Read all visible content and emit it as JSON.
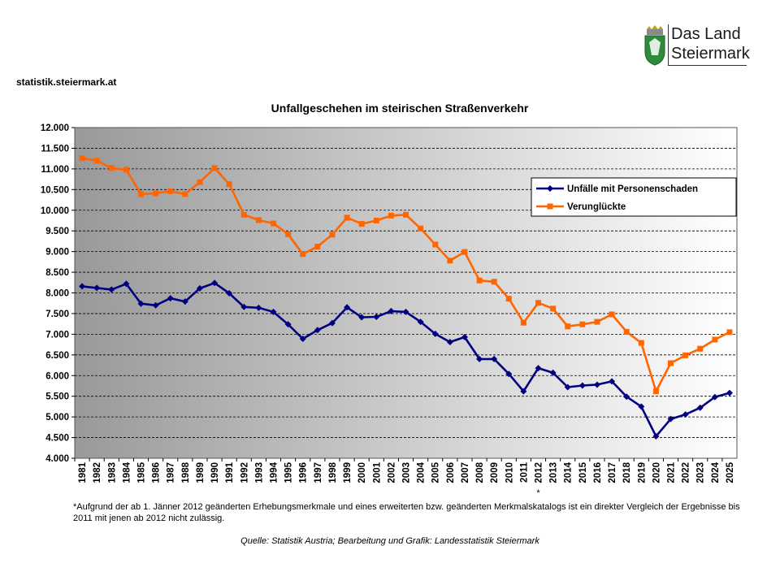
{
  "header": {
    "site": "statistik.steiermark.at",
    "logo_line1": "Das Land",
    "logo_line2": "Steiermark"
  },
  "footnote": "*Aufgrund der ab 1. Jänner 2012 geänderten Erhebungsmerkmale und eines erweiterten bzw. geänderten Merkmalskatalogs ist ein direkter Vergleich der Ergebnisse bis 2011 mit jenen ab 2012 nicht zulässig.",
  "source": "Quelle: Statistik Austria; Bearbeitung und Grafik: Landesstatistik Steiermark",
  "chart_data": {
    "type": "line",
    "title": "Unfallgeschehen im steirischen Straßenverkehr",
    "xlabel": "",
    "ylabel": "",
    "ylim": [
      4000,
      12000
    ],
    "ytick_step": 500,
    "ytick_labels": [
      "4.000",
      "4.500",
      "5.000",
      "5.500",
      "6.000",
      "6.500",
      "7.000",
      "7.500",
      "8.000",
      "8.500",
      "9.000",
      "9.500",
      "10.000",
      "10.500",
      "11.000",
      "11.500",
      "12.000"
    ],
    "grid": true,
    "legend_position": "top-right",
    "break_marker": {
      "year": "2012",
      "text": "*"
    },
    "x": [
      "1981",
      "1982",
      "1983",
      "1984",
      "1985",
      "1986",
      "1987",
      "1988",
      "1989",
      "1990",
      "1991",
      "1992",
      "1993",
      "1994",
      "1995",
      "1996",
      "1997",
      "1998",
      "1999",
      "2000",
      "2001",
      "2002",
      "2003",
      "2004",
      "2005",
      "2006",
      "2007",
      "2008",
      "2009",
      "2010",
      "2011",
      "2012",
      "2013",
      "2014",
      "2015",
      "2016",
      "2017",
      "2018",
      "2019",
      "2020",
      "2021",
      "2022",
      "2023",
      "2024",
      "2025"
    ],
    "series": [
      {
        "name": "Unfälle mit Personenschaden",
        "color": "#000080",
        "marker": "diamond",
        "values": [
          8160,
          8120,
          8080,
          8220,
          7740,
          7700,
          7870,
          7790,
          8110,
          8240,
          7990,
          7660,
          7640,
          7540,
          7240,
          6890,
          7100,
          7270,
          7650,
          7410,
          7420,
          7560,
          7540,
          7300,
          7010,
          6810,
          6930,
          6400,
          6400,
          6040,
          5620,
          6180,
          6070,
          5720,
          5760,
          5780,
          5860,
          5490,
          5250,
          4530,
          4950,
          5060,
          5220,
          5480,
          5580
        ]
      },
      {
        "name": "Verunglückte",
        "color": "#FF6600",
        "marker": "square",
        "values": [
          11260,
          11200,
          11020,
          10980,
          10390,
          10410,
          10460,
          10390,
          10680,
          11020,
          10630,
          9890,
          9760,
          9680,
          9420,
          8940,
          9120,
          9410,
          9820,
          9670,
          9750,
          9870,
          9890,
          9560,
          9170,
          8780,
          8990,
          8300,
          8270,
          7860,
          7280,
          7760,
          7620,
          7190,
          7240,
          7300,
          7480,
          7060,
          6790,
          5620,
          6300,
          6490,
          6650,
          6870,
          7050
        ]
      }
    ]
  }
}
